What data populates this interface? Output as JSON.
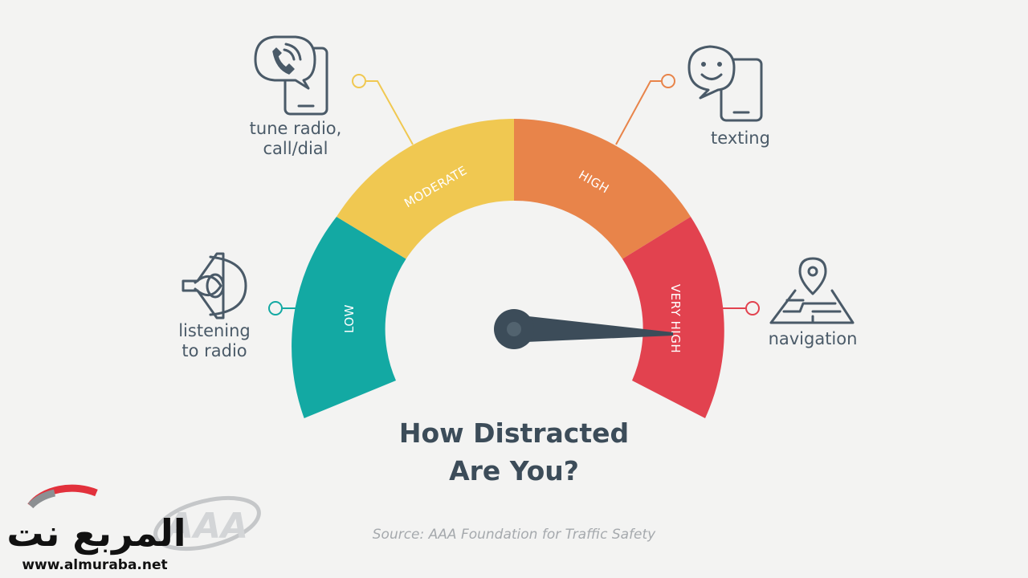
{
  "gauge": {
    "segments": [
      {
        "id": "low",
        "label": "LOW",
        "color": "#13a9a3"
      },
      {
        "id": "moderate",
        "label": "MODERATE",
        "color": "#f0c851"
      },
      {
        "id": "high",
        "label": "HIGH",
        "color": "#e8844a"
      },
      {
        "id": "very_high",
        "label": "VERY HIGH",
        "color": "#e2424f"
      }
    ],
    "needle_color": "#3c4c59"
  },
  "callouts": {
    "listening": {
      "line1": "listening",
      "line2": "to radio",
      "icon": "speaker-icon"
    },
    "tune_radio": {
      "line1": "tune radio,",
      "line2": "call/dial",
      "icon": "phone-call-icon"
    },
    "texting": {
      "line1": "texting",
      "icon": "phone-chat-icon"
    },
    "navigation": {
      "line1": "navigation",
      "icon": "map-pin-icon"
    }
  },
  "title": {
    "line1": "How Distracted",
    "line2": "Are You?"
  },
  "source": {
    "prefix": "Source:",
    "name": "AAA Foundation for Traffic Safety"
  },
  "watermark": {
    "arabic": "المربع نت",
    "url": "www.almuraba.net",
    "logo": "AAA"
  }
}
